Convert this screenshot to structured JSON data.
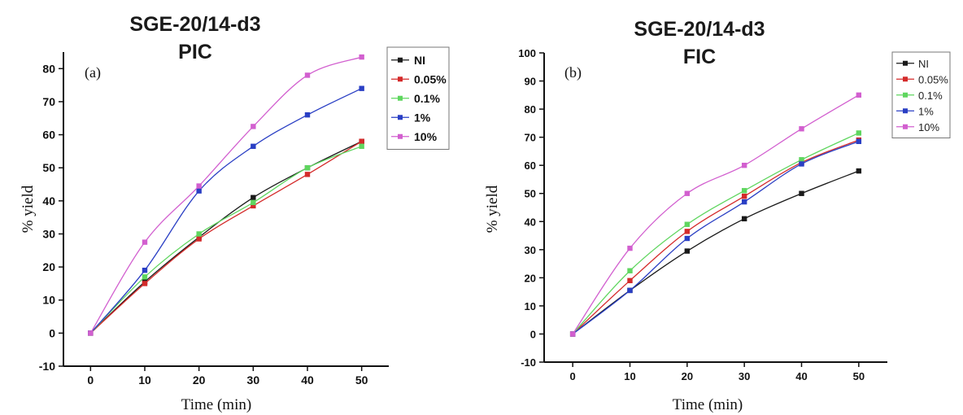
{
  "chart_data": [
    {
      "type": "line",
      "panel_label": "(a)",
      "title_line1": "SGE-20/14-d3",
      "title_line2": "PIC",
      "xlabel": "Time (min)",
      "ylabel": "% yield",
      "x": [
        0,
        10,
        20,
        30,
        40,
        50
      ],
      "xlim": [
        -5,
        55
      ],
      "ylim": [
        -10,
        85
      ],
      "xticks": [
        0,
        10,
        20,
        30,
        40,
        50
      ],
      "yticks": [
        -10,
        0,
        10,
        20,
        30,
        40,
        50,
        60,
        70,
        80
      ],
      "grid": false,
      "legend_position": "top-right",
      "series": [
        {
          "name": "NI",
          "color": "#1a1a1a",
          "values": [
            0,
            15.5,
            29,
            41,
            50,
            58
          ]
        },
        {
          "name": "0.05%",
          "color": "#d42a2a",
          "values": [
            0,
            15,
            28.5,
            38.5,
            48,
            58
          ]
        },
        {
          "name": "0.1%",
          "color": "#5fd65f",
          "values": [
            0,
            17,
            30,
            39.5,
            50,
            56.5
          ]
        },
        {
          "name": "1%",
          "color": "#2a3fc4",
          "values": [
            0,
            19,
            43,
            56.5,
            66,
            74
          ]
        },
        {
          "name": "10%",
          "color": "#d25fcf",
          "values": [
            0,
            27.5,
            44.5,
            62.5,
            78,
            83.5
          ]
        }
      ]
    },
    {
      "type": "line",
      "panel_label": "(b)",
      "title_line1": "SGE-20/14-d3",
      "title_line2": "FIC",
      "xlabel": "Time (min)",
      "ylabel": "% yield",
      "x": [
        0,
        10,
        20,
        30,
        40,
        50
      ],
      "xlim": [
        -5,
        55
      ],
      "ylim": [
        -10,
        100
      ],
      "xticks": [
        0,
        10,
        20,
        30,
        40,
        50
      ],
      "yticks": [
        -10,
        0,
        10,
        20,
        30,
        40,
        50,
        60,
        70,
        80,
        90,
        100
      ],
      "grid": false,
      "legend_position": "top-right",
      "series": [
        {
          "name": "NI",
          "color": "#1a1a1a",
          "values": [
            0,
            15.5,
            29.5,
            41,
            50,
            58
          ]
        },
        {
          "name": "0.05%",
          "color": "#d42a2a",
          "values": [
            0,
            19,
            36.5,
            49,
            61,
            69
          ]
        },
        {
          "name": "0.1%",
          "color": "#5fd65f",
          "values": [
            0,
            22.5,
            39,
            51,
            62,
            71.5
          ]
        },
        {
          "name": "1%",
          "color": "#2a3fc4",
          "values": [
            0,
            15.5,
            34,
            47,
            60.5,
            68.5
          ]
        },
        {
          "name": "10%",
          "color": "#d25fcf",
          "values": [
            0,
            30.5,
            50,
            60,
            73,
            85
          ]
        }
      ]
    }
  ]
}
